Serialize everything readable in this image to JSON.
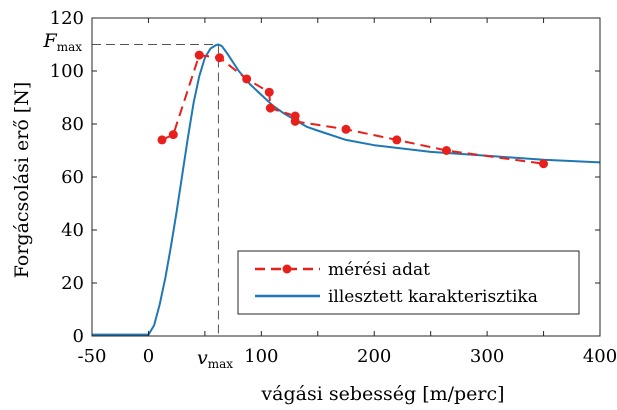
{
  "chart_data": {
    "type": "line",
    "xlabel": "vágási sebesség  [m/perc]",
    "ylabel": "Forgácsolási erő [N]",
    "xlim": [
      -50,
      400
    ],
    "ylim": [
      0,
      120
    ],
    "xticks": [
      -50,
      0,
      50,
      100,
      150,
      200,
      250,
      300,
      350,
      400
    ],
    "yticks": [
      0,
      20,
      40,
      60,
      80,
      100,
      120
    ],
    "xtick_labels": [
      "-50",
      "0",
      "",
      "100",
      "",
      "200",
      "",
      "300",
      "",
      "400"
    ],
    "grid": false,
    "legend_position": "bottom-right",
    "annotations": {
      "fmax_base": "F",
      "fmax_sub": "max",
      "vmax_base": "v",
      "vmax_sub": "max",
      "peak": {
        "x": 62,
        "y": 110
      }
    },
    "series": [
      {
        "name": "mérési adat",
        "style": "dashed-markers",
        "color": "#e8201c",
        "x": [
          12,
          22,
          45,
          63,
          87,
          107,
          108,
          130,
          130,
          175,
          220,
          264,
          350
        ],
        "y": [
          74,
          76,
          106,
          105,
          97,
          92,
          86,
          83,
          81,
          78,
          74,
          70,
          65
        ]
      },
      {
        "name": "illesztett karakterisztika",
        "style": "solid",
        "color": "#1f77b4",
        "x": [
          -50,
          0,
          5,
          10,
          15,
          20,
          25,
          30,
          35,
          40,
          45,
          50,
          55,
          60,
          62,
          65,
          70,
          80,
          90,
          100,
          110,
          120,
          130,
          140,
          150,
          175,
          200,
          250,
          300,
          350,
          400
        ],
        "y": [
          0.5,
          0.5,
          4,
          12,
          22,
          34,
          47,
          61,
          75,
          88,
          98,
          105,
          108.5,
          109.8,
          110,
          109.4,
          106.5,
          100,
          95,
          91,
          87,
          84,
          81.5,
          79,
          77.5,
          74,
          72,
          69.5,
          68,
          66.5,
          65.5
        ]
      }
    ]
  }
}
